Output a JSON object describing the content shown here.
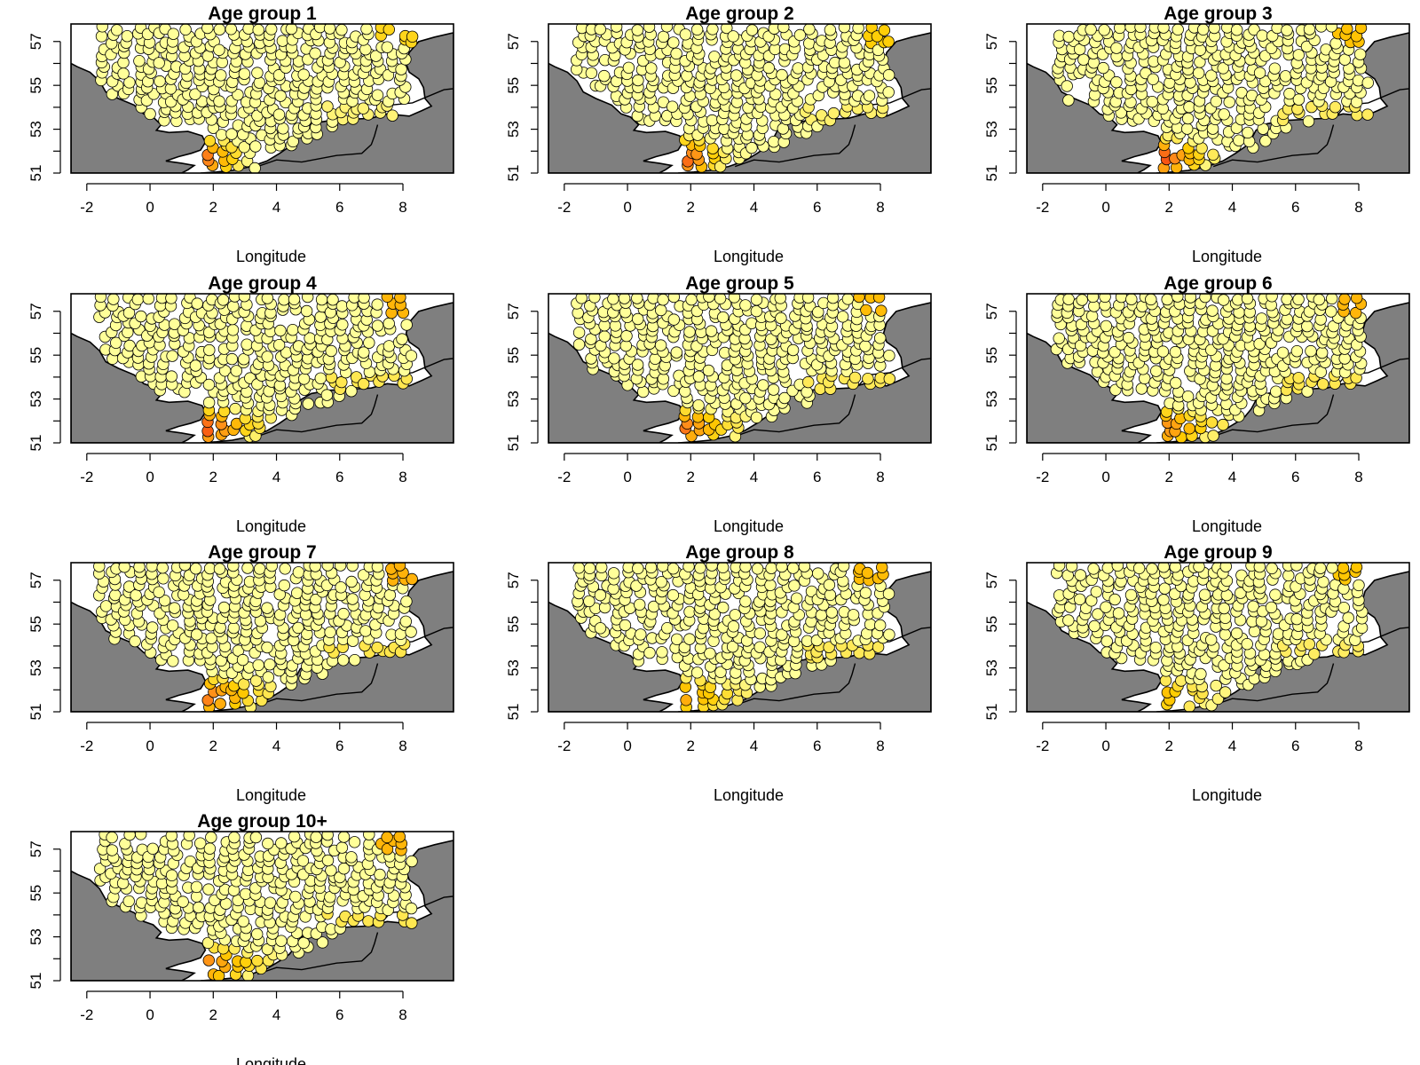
{
  "figure": {
    "panels": [
      {
        "title": "Age group 1",
        "xlabel": "Longitude"
      },
      {
        "title": "Age group 2",
        "xlabel": "Longitude"
      },
      {
        "title": "Age group 3",
        "xlabel": "Longitude"
      },
      {
        "title": "Age group 4",
        "xlabel": "Longitude"
      },
      {
        "title": "Age group 5",
        "xlabel": "Longitude"
      },
      {
        "title": "Age group 6",
        "xlabel": "Longitude"
      },
      {
        "title": "Age group 7",
        "xlabel": "Longitude"
      },
      {
        "title": "Age group 8",
        "xlabel": "Longitude"
      },
      {
        "title": "Age group 9",
        "xlabel": "Longitude"
      },
      {
        "title": "Age group 10+",
        "xlabel": "Longitude"
      }
    ],
    "x_ticks": [
      "-2",
      "0",
      "2",
      "4",
      "6",
      "8"
    ],
    "y_ticks": [
      "51",
      "53",
      "55",
      "57"
    ],
    "x_range": [
      -2.5,
      9.6
    ],
    "y_range": [
      51,
      57.8
    ],
    "colors": {
      "land": "#7f7f7f",
      "sea": "#ffffff",
      "low": "#ffff99",
      "mid": "#ffcc00",
      "high": "#ff8c1a",
      "max": "#ee1c0c"
    }
  }
}
